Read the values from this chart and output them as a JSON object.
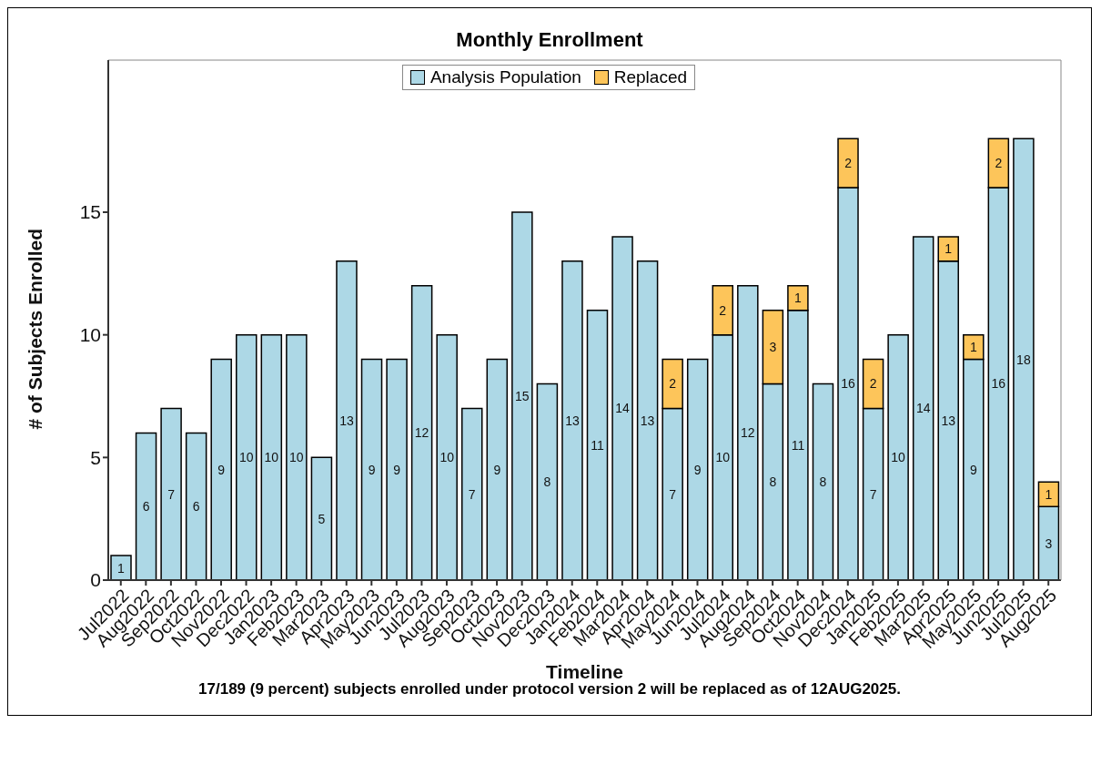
{
  "chart_data": {
    "type": "bar",
    "title": "Monthly Enrollment",
    "xlabel": "Timeline",
    "ylabel": "# of Subjects Enrolled",
    "categories": [
      "Jul2022",
      "Aug2022",
      "Sep2022",
      "Oct2022",
      "Nov2022",
      "Dec2022",
      "Jan2023",
      "Feb2023",
      "Mar2023",
      "Apr2023",
      "May2023",
      "Jun2023",
      "Jul2023",
      "Aug2023",
      "Sep2023",
      "Oct2023",
      "Nov2023",
      "Dec2023",
      "Jan2024",
      "Feb2024",
      "Mar2024",
      "Apr2024",
      "May2024",
      "Jun2024",
      "Jul2024",
      "Aug2024",
      "Sep2024",
      "Oct2024",
      "Nov2024",
      "Dec2024",
      "Jan2025",
      "Feb2025",
      "Mar2025",
      "Apr2025",
      "May2025",
      "Jun2025",
      "Jul2025",
      "Aug2025"
    ],
    "series": [
      {
        "name": "Analysis Population",
        "color": "#add8e6",
        "values": [
          1,
          6,
          7,
          6,
          9,
          10,
          10,
          10,
          5,
          13,
          9,
          9,
          12,
          10,
          7,
          9,
          15,
          8,
          13,
          11,
          14,
          13,
          7,
          9,
          10,
          12,
          8,
          11,
          8,
          16,
          7,
          10,
          14,
          13,
          9,
          16,
          18,
          3
        ]
      },
      {
        "name": "Replaced",
        "color": "#fdc55a",
        "values": [
          null,
          null,
          null,
          null,
          null,
          null,
          null,
          null,
          null,
          null,
          null,
          null,
          null,
          null,
          null,
          null,
          null,
          null,
          null,
          null,
          null,
          null,
          2,
          null,
          2,
          null,
          3,
          1,
          null,
          2,
          2,
          null,
          null,
          1,
          1,
          2,
          null,
          1
        ]
      }
    ],
    "stacked": true,
    "data_labels": true,
    "ylim": [
      0,
      21.2
    ],
    "yticks": [
      0,
      5,
      10,
      15
    ],
    "legend": "top",
    "annotations": [
      "17/189 (9 percent) subjects enrolled under protocol version 2 will be replaced as of 12AUG2025."
    ]
  }
}
